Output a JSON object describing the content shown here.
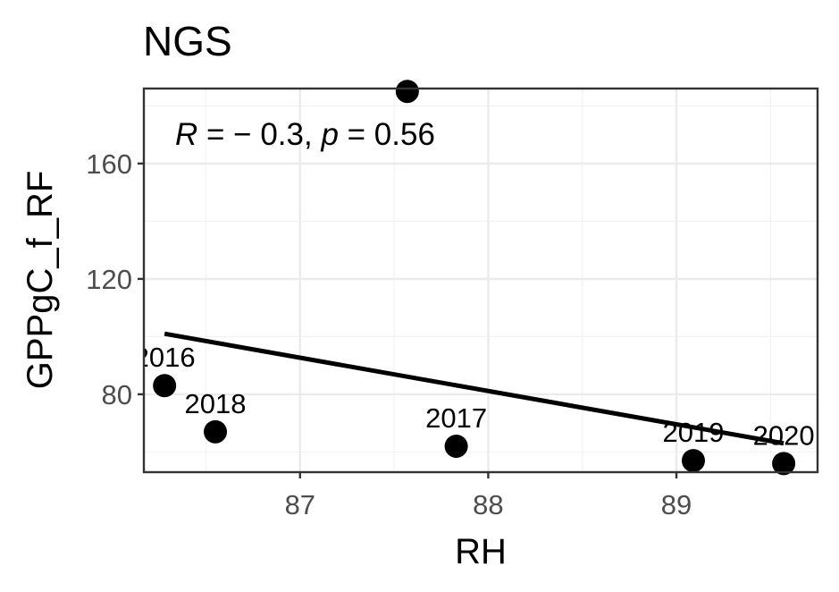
{
  "chart_data": {
    "type": "scatter",
    "title": "NGS",
    "xlabel": "RH",
    "ylabel": "GPPgC_f_RF",
    "xlim": [
      86.17,
      89.75
    ],
    "ylim": [
      53,
      186
    ],
    "x_ticks": [
      87,
      88,
      89
    ],
    "y_ticks": [
      80,
      120,
      160
    ],
    "grid": true,
    "points": [
      {
        "x": 86.28,
        "y": 83,
        "label": "2016"
      },
      {
        "x": 86.55,
        "y": 67,
        "label": "2018"
      },
      {
        "x": 87.83,
        "y": 62,
        "label": "2017"
      },
      {
        "x": 89.09,
        "y": 57,
        "label": "2019"
      },
      {
        "x": 89.57,
        "y": 56,
        "label": "2020"
      },
      {
        "x": 87.57,
        "y": 185,
        "label": ""
      }
    ],
    "regression_line": {
      "x": [
        86.28,
        89.57
      ],
      "y": [
        101,
        63
      ]
    },
    "annotation": {
      "r_symbol": "R",
      "r_text": " = − 0.3, ",
      "p_symbol": "p",
      "p_text": " = 0.56"
    }
  }
}
